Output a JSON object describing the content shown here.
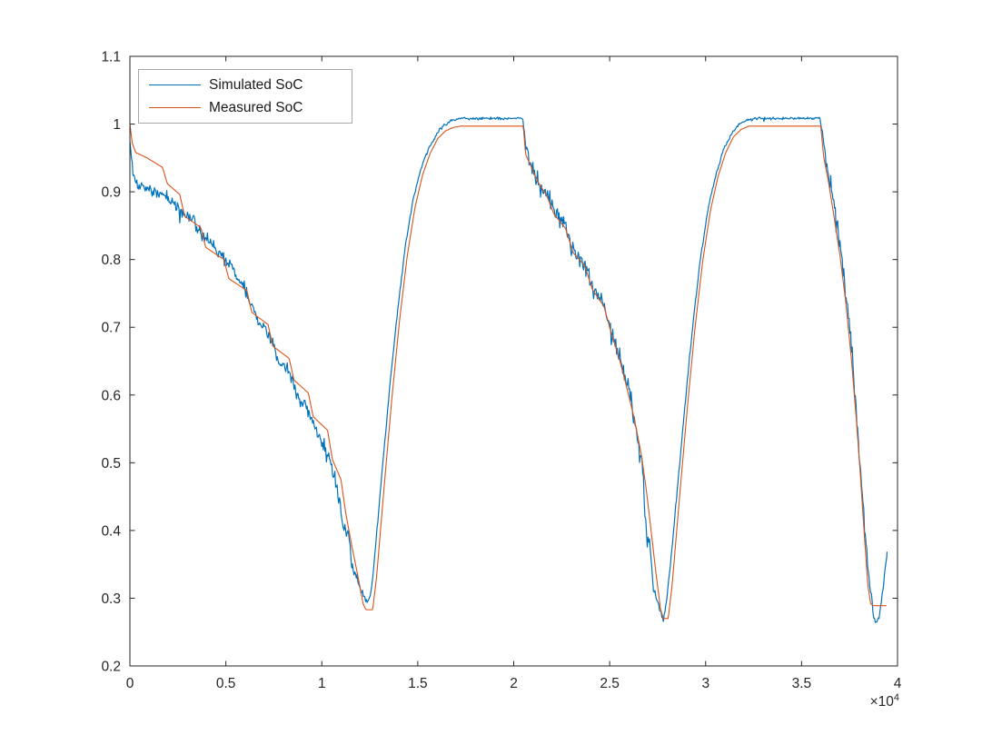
{
  "chart_data": {
    "type": "line",
    "title": "",
    "xlabel": "",
    "ylabel": "",
    "xlim": [
      0,
      40000
    ],
    "ylim": [
      0.2,
      1.1
    ],
    "grid": false,
    "axis_color": "#262626",
    "background": "#ffffff",
    "legend_position": "northwest",
    "x_exponent_base": "×10",
    "x_exponent_power": "4",
    "x_ticks": {
      "values": [
        0,
        5000,
        10000,
        15000,
        20000,
        25000,
        30000,
        35000,
        40000
      ],
      "labels": [
        "0",
        "0.5",
        "1",
        "1.5",
        "2",
        "2.5",
        "3",
        "3.5",
        "4"
      ]
    },
    "y_ticks": {
      "values": [
        0.2,
        0.3,
        0.4,
        0.5,
        0.6,
        0.7,
        0.8,
        0.9,
        1.0,
        1.1
      ],
      "labels": [
        "0.2",
        "0.3",
        "0.4",
        "0.5",
        "0.6",
        "0.7",
        "0.8",
        "0.9",
        "1",
        "1.1"
      ]
    },
    "series": [
      {
        "name": "Simulated SoC",
        "color": "#0072BD",
        "line_width": 1.2,
        "noise_seed": 1337,
        "keypoints": [
          [
            0,
            0.975,
            0.003
          ],
          [
            150,
            0.93,
            0.006
          ],
          [
            400,
            0.912,
            0.007
          ],
          [
            900,
            0.905,
            0.007
          ],
          [
            1500,
            0.898,
            0.007
          ],
          [
            2100,
            0.888,
            0.008
          ],
          [
            2500,
            0.878,
            0.009
          ],
          [
            3100,
            0.862,
            0.009
          ],
          [
            3700,
            0.84,
            0.009
          ],
          [
            4300,
            0.82,
            0.008
          ],
          [
            5100,
            0.798,
            0.008
          ],
          [
            5700,
            0.768,
            0.008
          ],
          [
            6300,
            0.737,
            0.009
          ],
          [
            6700,
            0.706,
            0.008
          ],
          [
            7300,
            0.688,
            0.008
          ],
          [
            7700,
            0.655,
            0.008
          ],
          [
            8300,
            0.636,
            0.008
          ],
          [
            8700,
            0.6,
            0.008
          ],
          [
            9300,
            0.576,
            0.009
          ],
          [
            9700,
            0.545,
            0.008
          ],
          [
            10300,
            0.518,
            0.009
          ],
          [
            10700,
            0.472,
            0.01
          ],
          [
            11000,
            0.437,
            0.012
          ],
          [
            11150,
            0.405,
            0.012
          ],
          [
            11400,
            0.398,
            0.01
          ],
          [
            11550,
            0.352,
            0.008
          ],
          [
            11800,
            0.333,
            0.006
          ],
          [
            12100,
            0.308,
            0.005
          ],
          [
            12350,
            0.296,
            0.004
          ],
          [
            12550,
            0.305,
            0.003
          ],
          [
            12750,
            0.36,
            0.003
          ],
          [
            13150,
            0.49,
            0.002
          ],
          [
            13550,
            0.615,
            0.002
          ],
          [
            13950,
            0.725,
            0.002
          ],
          [
            14350,
            0.82,
            0.002
          ],
          [
            14750,
            0.888,
            0.002
          ],
          [
            15150,
            0.933,
            0.002
          ],
          [
            15550,
            0.963,
            0.002
          ],
          [
            15950,
            0.984,
            0.002
          ],
          [
            16350,
            0.998,
            0.002
          ],
          [
            16750,
            1.005,
            0.0015
          ],
          [
            17150,
            1.008,
            0.0015
          ],
          [
            20450,
            1.009,
            0.0015
          ],
          [
            20550,
            0.995,
            0.004
          ],
          [
            20650,
            0.958,
            0.009
          ],
          [
            20900,
            0.942,
            0.012
          ],
          [
            21300,
            0.916,
            0.012
          ],
          [
            21700,
            0.9,
            0.01
          ],
          [
            22100,
            0.872,
            0.012
          ],
          [
            22700,
            0.85,
            0.01
          ],
          [
            23100,
            0.814,
            0.012
          ],
          [
            23700,
            0.794,
            0.01
          ],
          [
            24100,
            0.76,
            0.012
          ],
          [
            24700,
            0.734,
            0.01
          ],
          [
            25100,
            0.694,
            0.012
          ],
          [
            25500,
            0.658,
            0.012
          ],
          [
            25900,
            0.614,
            0.012
          ],
          [
            26300,
            0.568,
            0.014
          ],
          [
            26550,
            0.52,
            0.014
          ],
          [
            26700,
            0.497,
            0.012
          ],
          [
            26820,
            0.43,
            0.016
          ],
          [
            26950,
            0.39,
            0.014
          ],
          [
            27100,
            0.383,
            0.009
          ],
          [
            27250,
            0.318,
            0.008
          ],
          [
            27450,
            0.3,
            0.006
          ],
          [
            27650,
            0.278,
            0.006
          ],
          [
            27820,
            0.268,
            0.005
          ],
          [
            27950,
            0.295,
            0.004
          ],
          [
            28150,
            0.345,
            0.003
          ],
          [
            28550,
            0.468,
            0.002
          ],
          [
            28950,
            0.592,
            0.002
          ],
          [
            29350,
            0.708,
            0.002
          ],
          [
            29750,
            0.806,
            0.002
          ],
          [
            30150,
            0.878,
            0.002
          ],
          [
            30550,
            0.928,
            0.002
          ],
          [
            30950,
            0.963,
            0.002
          ],
          [
            31350,
            0.986,
            0.002
          ],
          [
            31750,
            1.0,
            0.0015
          ],
          [
            32150,
            1.006,
            0.0015
          ],
          [
            32550,
            1.008,
            0.0015
          ],
          [
            35950,
            1.009,
            0.0015
          ],
          [
            36050,
            0.995,
            0.005
          ],
          [
            36250,
            0.952,
            0.012
          ],
          [
            36500,
            0.91,
            0.014
          ],
          [
            36800,
            0.856,
            0.014
          ],
          [
            37100,
            0.8,
            0.012
          ],
          [
            37400,
            0.728,
            0.014
          ],
          [
            37700,
            0.64,
            0.015
          ],
          [
            37900,
            0.558,
            0.016
          ],
          [
            38100,
            0.478,
            0.018
          ],
          [
            38300,
            0.398,
            0.014
          ],
          [
            38500,
            0.33,
            0.01
          ],
          [
            38700,
            0.287,
            0.008
          ],
          [
            38850,
            0.264,
            0.006
          ],
          [
            39050,
            0.272,
            0.005
          ],
          [
            39250,
            0.315,
            0.004
          ],
          [
            39450,
            0.368,
            0.003
          ]
        ]
      },
      {
        "name": "Measured SoC",
        "color": "#D95319",
        "line_width": 1.1,
        "noise_seed": 7,
        "keypoints": [
          [
            0,
            1.0,
            0
          ],
          [
            120,
            0.972,
            0
          ],
          [
            300,
            0.958,
            0
          ],
          [
            900,
            0.95,
            0
          ],
          [
            1700,
            0.936,
            0
          ],
          [
            1950,
            0.912,
            0
          ],
          [
            2600,
            0.896,
            0
          ],
          [
            2850,
            0.864,
            0
          ],
          [
            3700,
            0.847,
            0
          ],
          [
            3950,
            0.818,
            0
          ],
          [
            4900,
            0.8,
            0
          ],
          [
            5150,
            0.772,
            0
          ],
          [
            6100,
            0.754,
            0
          ],
          [
            6350,
            0.722,
            0
          ],
          [
            7200,
            0.704,
            0
          ],
          [
            7450,
            0.672,
            0
          ],
          [
            8300,
            0.654,
            0
          ],
          [
            8550,
            0.622,
            0
          ],
          [
            9300,
            0.603,
            0
          ],
          [
            9550,
            0.568,
            0
          ],
          [
            10300,
            0.548,
            0
          ],
          [
            10550,
            0.505,
            0
          ],
          [
            11000,
            0.475,
            0
          ],
          [
            11250,
            0.425,
            0
          ],
          [
            11600,
            0.372,
            0
          ],
          [
            11900,
            0.33,
            0
          ],
          [
            12150,
            0.292,
            0
          ],
          [
            12300,
            0.283,
            0
          ],
          [
            12650,
            0.283,
            0
          ],
          [
            12850,
            0.33,
            0
          ],
          [
            13250,
            0.465,
            0
          ],
          [
            13650,
            0.595,
            0
          ],
          [
            14050,
            0.71,
            0
          ],
          [
            14450,
            0.805,
            0
          ],
          [
            14850,
            0.876,
            0
          ],
          [
            15250,
            0.925,
            0
          ],
          [
            15650,
            0.957,
            0
          ],
          [
            16050,
            0.979,
            0
          ],
          [
            16450,
            0.99,
            0
          ],
          [
            16850,
            0.995,
            0
          ],
          [
            17250,
            0.997,
            0
          ],
          [
            20500,
            0.997,
            0
          ],
          [
            20620,
            0.955,
            0
          ],
          [
            20900,
            0.938,
            0
          ],
          [
            21300,
            0.912,
            0
          ],
          [
            21700,
            0.896,
            0
          ],
          [
            22100,
            0.867,
            0
          ],
          [
            22700,
            0.846,
            0
          ],
          [
            23100,
            0.81,
            0
          ],
          [
            23700,
            0.791,
            0
          ],
          [
            24100,
            0.756,
            0
          ],
          [
            24700,
            0.731,
            0
          ],
          [
            25100,
            0.69,
            0
          ],
          [
            25500,
            0.654,
            0
          ],
          [
            25900,
            0.61,
            0
          ],
          [
            26300,
            0.563,
            0
          ],
          [
            26650,
            0.512,
            0
          ],
          [
            26900,
            0.462,
            0
          ],
          [
            27150,
            0.402,
            0
          ],
          [
            27400,
            0.34,
            0
          ],
          [
            27650,
            0.284,
            0
          ],
          [
            27800,
            0.27,
            0
          ],
          [
            28050,
            0.27,
            0
          ],
          [
            28250,
            0.318,
            0
          ],
          [
            28650,
            0.452,
            0
          ],
          [
            29050,
            0.582,
            0
          ],
          [
            29450,
            0.7,
            0
          ],
          [
            29850,
            0.798,
            0
          ],
          [
            30250,
            0.872,
            0
          ],
          [
            30650,
            0.923,
            0
          ],
          [
            31050,
            0.958,
            0
          ],
          [
            31450,
            0.981,
            0
          ],
          [
            31850,
            0.992,
            0
          ],
          [
            32250,
            0.997,
            0
          ],
          [
            36000,
            0.997,
            0
          ],
          [
            36150,
            0.952,
            0
          ],
          [
            36400,
            0.915,
            0
          ],
          [
            36700,
            0.862,
            0
          ],
          [
            37000,
            0.806,
            0
          ],
          [
            37300,
            0.738,
            0
          ],
          [
            37600,
            0.652,
            0
          ],
          [
            37850,
            0.565,
            0
          ],
          [
            38050,
            0.488,
            0
          ],
          [
            38250,
            0.402,
            0
          ],
          [
            38450,
            0.32,
            0
          ],
          [
            38600,
            0.292,
            0
          ],
          [
            38750,
            0.289,
            0
          ],
          [
            39400,
            0.289,
            0
          ]
        ]
      }
    ]
  }
}
